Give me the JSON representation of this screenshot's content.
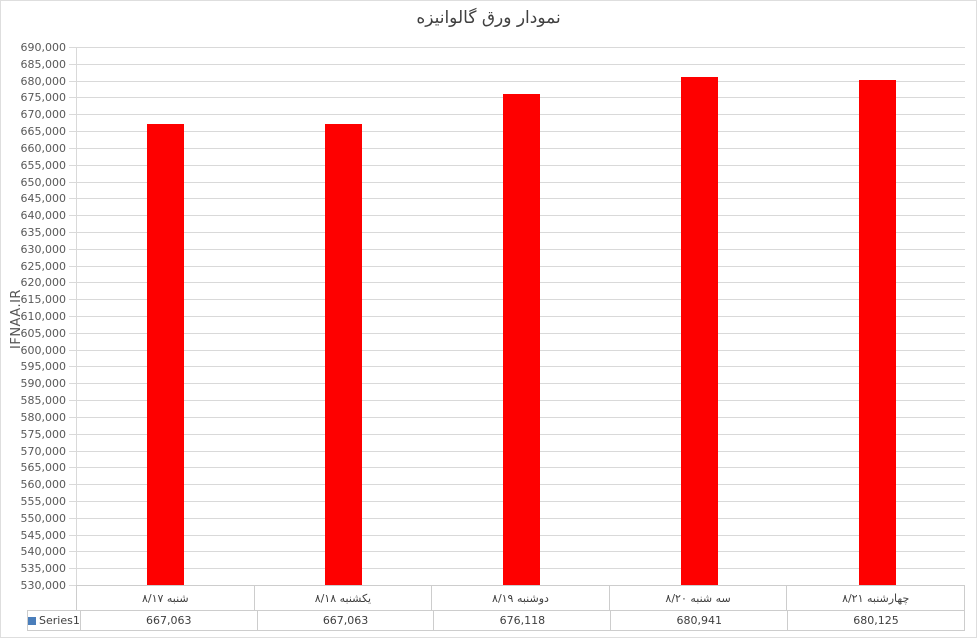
{
  "chart_data": {
    "type": "bar",
    "title": "نمودار ورق گالوانیزه",
    "ylabel": "IFNAA.IR",
    "categories": [
      "شنبه ۸/۱۷",
      "یکشنبه ۸/۱۸",
      "دوشنبه ۸/۱۹",
      "سه شنبه ۸/۲۰",
      "چهارشنبه ۸/۲۱"
    ],
    "series": [
      {
        "name": "Series1",
        "values": [
          667063,
          667063,
          676118,
          680941,
          680125
        ]
      }
    ],
    "value_labels": [
      "667,063",
      "667,063",
      "676,118",
      "680,941",
      "680,125"
    ],
    "ylim": [
      530000,
      690000
    ],
    "ytick_step": 5000,
    "bar_color": "#fe0000",
    "legend_marker_color": "#4a7ebb",
    "gridline_color": "#d9d9d9",
    "grid": "horizontal",
    "legend_position": "bottom-table"
  }
}
